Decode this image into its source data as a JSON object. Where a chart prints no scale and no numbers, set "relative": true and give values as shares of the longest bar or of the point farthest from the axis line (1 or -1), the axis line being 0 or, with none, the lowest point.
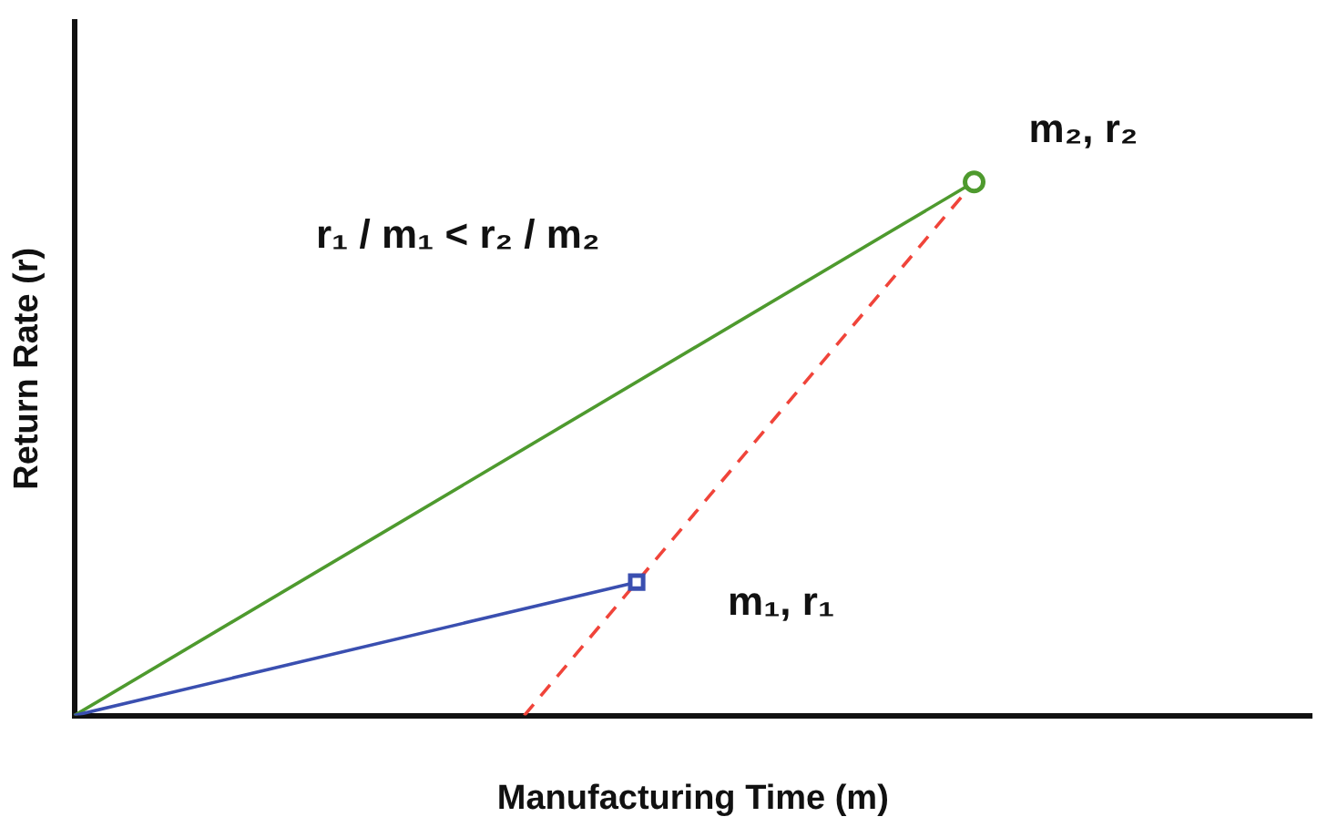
{
  "chart_data": {
    "type": "line",
    "relative": true,
    "xlabel": "Manufacturing Time (m)",
    "ylabel": "Return Rate (r)",
    "categories": [
      null,
      null,
      null,
      null,
      null,
      null,
      null,
      null,
      null,
      null,
      null,
      null
    ],
    "series": [
      {
        "color": "#3a4fb0",
        "values": [
          0,
          null,
          null,
          null,
          null,
          0.25,
          null,
          null,
          null,
          null,
          null,
          null
        ],
        "marker": "square",
        "line_style": "solid"
      },
      {
        "color": "#4e9a2e",
        "values": [
          0,
          null,
          null,
          null,
          null,
          null,
          null,
          null,
          1,
          null,
          null,
          null
        ],
        "marker": "circle",
        "line_style": "solid"
      },
      {
        "color": "#f0443a",
        "values": [
          null,
          null,
          null,
          null,
          0,
          null,
          null,
          null,
          1,
          null,
          null,
          null
        ],
        "marker": "none",
        "line_style": "dashed"
      }
    ],
    "annotations": [
      "r₁ / m₁ < r₂ / m₂",
      "m₁, r₁",
      "m₂, r₂"
    ],
    "legend": false,
    "grid": false
  }
}
